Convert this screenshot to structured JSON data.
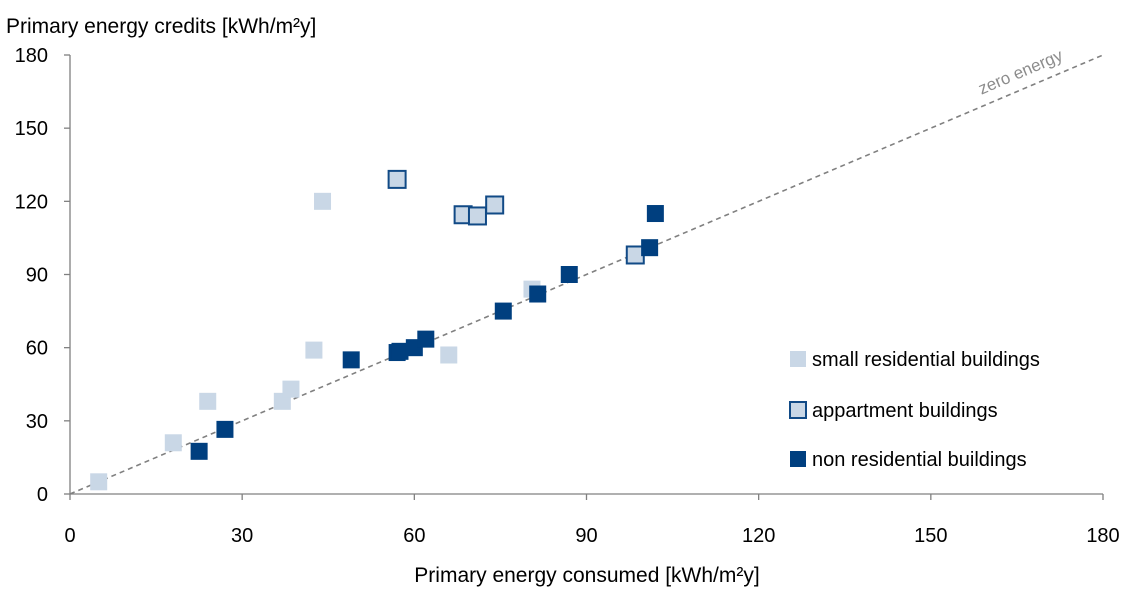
{
  "chart_data": {
    "type": "scatter",
    "ylabel": "Primary energy credits [kWh/m²y]",
    "xlabel": "Primary energy consumed [kWh/m²y]",
    "xlim": [
      0,
      180
    ],
    "ylim": [
      0,
      180
    ],
    "xticks": [
      "0",
      "30",
      "60",
      "90",
      "120",
      "150",
      "180"
    ],
    "yticks": [
      "0",
      "30",
      "60",
      "90",
      "120",
      "150",
      "180"
    ],
    "grid": false,
    "legend_position": "right",
    "reference_line": {
      "label": "zero energy",
      "from": [
        0,
        0
      ],
      "to": [
        180,
        180
      ],
      "color": "#808080"
    },
    "series": [
      {
        "name": "small residential buildings",
        "marker": "square-filled",
        "color": "#c9d7e6",
        "points": [
          [
            5,
            5
          ],
          [
            18,
            21
          ],
          [
            24,
            38
          ],
          [
            37,
            38
          ],
          [
            38.5,
            43
          ],
          [
            42.5,
            59
          ],
          [
            44,
            120
          ],
          [
            66,
            57
          ],
          [
            80.5,
            84
          ]
        ]
      },
      {
        "name": "appartment buildings",
        "marker": "square-outlined",
        "color": "#c9d7e6",
        "edge": "#114a86",
        "points": [
          [
            57,
            129
          ],
          [
            68.5,
            114.5
          ],
          [
            71,
            114
          ],
          [
            74,
            118.5
          ],
          [
            98.5,
            98
          ]
        ]
      },
      {
        "name": "non residential buildings",
        "marker": "square-filled",
        "color": "#003f7f",
        "points": [
          [
            22.5,
            17.5
          ],
          [
            27,
            26.5
          ],
          [
            49,
            55
          ],
          [
            57,
            58
          ],
          [
            57.5,
            58.5
          ],
          [
            60,
            60
          ],
          [
            62,
            63.5
          ],
          [
            75.5,
            75
          ],
          [
            81.5,
            82
          ],
          [
            87,
            90
          ],
          [
            101,
            101
          ],
          [
            102,
            115
          ]
        ]
      }
    ]
  }
}
